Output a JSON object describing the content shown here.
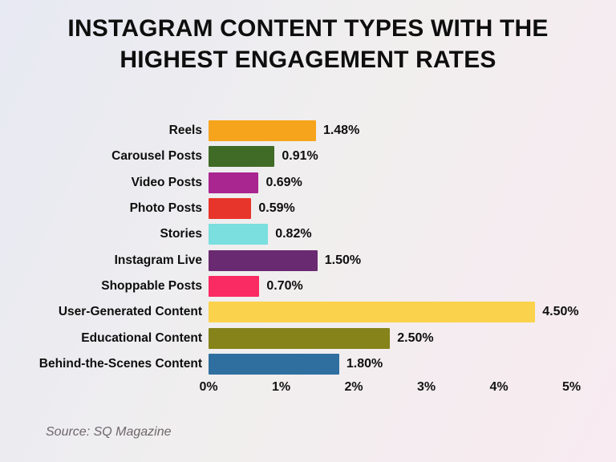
{
  "title": "INSTAGRAM CONTENT TYPES WITH THE HIGHEST ENGAGEMENT RATES",
  "source": "Source: SQ Magazine",
  "chart_data": {
    "type": "bar",
    "orientation": "horizontal",
    "title": "INSTAGRAM CONTENT TYPES WITH THE HIGHEST ENGAGEMENT RATES",
    "categories": [
      "Reels",
      "Carousel Posts",
      "Video Posts",
      "Photo Posts",
      "Stories",
      "Instagram Live",
      "Shoppable Posts",
      "User-Generated Content",
      "Educational Content",
      "Behind-the-Scenes Content"
    ],
    "values": [
      1.48,
      0.91,
      0.69,
      0.59,
      0.82,
      1.5,
      0.7,
      4.5,
      2.5,
      1.8
    ],
    "value_labels": [
      "1.48%",
      "0.91%",
      "0.69%",
      "0.59%",
      "0.82%",
      "1.50%",
      "0.70%",
      "4.50%",
      "2.50%",
      "1.80%"
    ],
    "bar_colors": [
      "#F7A41D",
      "#406B26",
      "#A9258F",
      "#E8352B",
      "#7ADFDE",
      "#6A2A71",
      "#FA2A62",
      "#FBD24B",
      "#85831A",
      "#2F6FA0"
    ],
    "xlabel": "",
    "ylabel": "",
    "x_ticks": [
      "0%",
      "1%",
      "2%",
      "3%",
      "4%",
      "5%"
    ],
    "xlim": [
      0,
      5
    ],
    "grid": false,
    "legend": false
  },
  "background": {
    "gradient_start": "#e7e9f3",
    "gradient_mid": "#f0eeee",
    "gradient_end": "#f8ebf1"
  }
}
